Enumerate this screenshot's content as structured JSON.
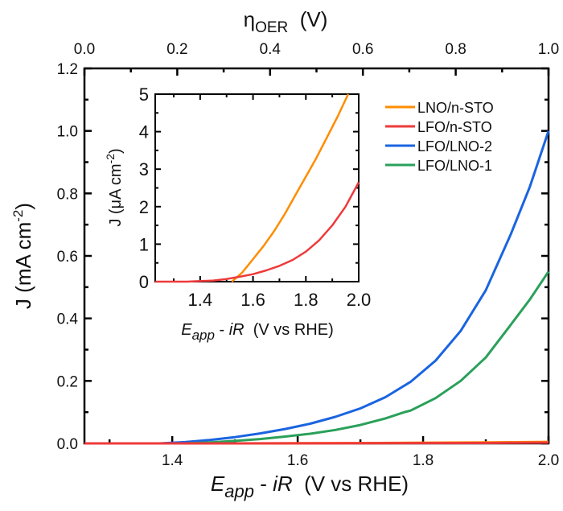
{
  "chart_data": [
    {
      "id": "main",
      "type": "line",
      "title": "",
      "xlabel": {
        "main": "E",
        "sub": "app",
        "rest": " - iR  (V vs RHE)"
      },
      "ylabel": {
        "main": "J (mA cm",
        "sup": "-2",
        "close": ")"
      },
      "top_xlabel": {
        "main": "η",
        "sub": "OER",
        "rest": "  (V)"
      },
      "xlim": [
        1.26,
        2.0
      ],
      "ylim": [
        0.0,
        1.2
      ],
      "top_xlim": [
        0.0,
        1.0
      ],
      "x_ticks": [
        "1.4",
        "1.6",
        "1.8",
        "2.0"
      ],
      "x_tick_values": [
        1.4,
        1.6,
        1.8,
        2.0
      ],
      "y_ticks": [
        "0.0",
        "0.2",
        "0.4",
        "0.6",
        "0.8",
        "1.0",
        "1.2"
      ],
      "y_tick_values": [
        0.0,
        0.2,
        0.4,
        0.6,
        0.8,
        1.0,
        1.2
      ],
      "top_x_ticks": [
        "0.0",
        "0.2",
        "0.4",
        "0.6",
        "0.8",
        "1.0"
      ],
      "top_x_tick_values": [
        0.0,
        0.2,
        0.4,
        0.6,
        0.8,
        1.0
      ],
      "grid": false,
      "legend_position": "top-right",
      "series": [
        {
          "name": "LNO/n-STO",
          "color": "#ff8c00",
          "x": [
            1.26,
            1.5,
            1.7,
            1.9,
            2.0
          ],
          "y": [
            0.0,
            0.0,
            0.001,
            0.003,
            0.005
          ]
        },
        {
          "name": "LFO/n-STO",
          "color": "#ee3a3a",
          "x": [
            1.26,
            1.5,
            1.7,
            1.9,
            2.0
          ],
          "y": [
            0.0,
            0.0,
            0.0005,
            0.0012,
            0.0027
          ]
        },
        {
          "name": "LFO/LNO-2",
          "color": "#1a64e0",
          "x": [
            1.26,
            1.38,
            1.42,
            1.46,
            1.5,
            1.54,
            1.58,
            1.62,
            1.66,
            1.7,
            1.74,
            1.78,
            1.82,
            1.86,
            1.9,
            1.94,
            1.97,
            2.0
          ],
          "y": [
            0.0,
            0.0,
            0.004,
            0.011,
            0.02,
            0.032,
            0.046,
            0.063,
            0.085,
            0.112,
            0.148,
            0.197,
            0.265,
            0.36,
            0.49,
            0.67,
            0.82,
            1.0
          ]
        },
        {
          "name": "LFO/LNO-1",
          "color": "#2aa05a",
          "x": [
            1.26,
            1.42,
            1.46,
            1.5,
            1.54,
            1.58,
            1.62,
            1.66,
            1.7,
            1.74,
            1.77,
            1.78,
            1.82,
            1.86,
            1.9,
            1.94,
            1.97,
            2.0
          ],
          "y": [
            0.0,
            0.0,
            0.003,
            0.008,
            0.014,
            0.022,
            0.031,
            0.043,
            0.059,
            0.08,
            0.1,
            0.105,
            0.145,
            0.2,
            0.275,
            0.38,
            0.46,
            0.55
          ]
        }
      ]
    },
    {
      "id": "inset",
      "type": "line",
      "title": "",
      "xlabel": {
        "main": "E",
        "sub": "app",
        "rest": " - iR  (V vs RHE)"
      },
      "ylabel": {
        "main": "J (μA cm",
        "sup": "-2",
        "close": ")"
      },
      "xlim": [
        1.23,
        2.0
      ],
      "ylim": [
        0,
        5
      ],
      "x_ticks": [
        "1.4",
        "1.6",
        "1.8",
        "2.0"
      ],
      "x_tick_values": [
        1.4,
        1.6,
        1.8,
        2.0
      ],
      "y_ticks": [
        "0",
        "1",
        "2",
        "3",
        "4",
        "5"
      ],
      "y_tick_values": [
        0,
        1,
        2,
        3,
        4,
        5
      ],
      "grid": false,
      "series": [
        {
          "name": "LNO/n-STO",
          "color": "#ff8c00",
          "x": [
            1.52,
            1.56,
            1.6,
            1.64,
            1.68,
            1.72,
            1.76,
            1.8,
            1.84,
            1.88,
            1.92,
            1.96
          ],
          "y": [
            0.0,
            0.25,
            0.6,
            0.95,
            1.35,
            1.8,
            2.3,
            2.8,
            3.3,
            3.85,
            4.4,
            5.0
          ]
        },
        {
          "name": "LFO/n-STO",
          "color": "#ee3a3a",
          "x": [
            1.23,
            1.35,
            1.45,
            1.5,
            1.55,
            1.6,
            1.65,
            1.7,
            1.75,
            1.8,
            1.85,
            1.9,
            1.95,
            2.0
          ],
          "y": [
            0.0,
            0.0,
            0.03,
            0.07,
            0.13,
            0.2,
            0.3,
            0.42,
            0.58,
            0.8,
            1.1,
            1.5,
            2.0,
            2.65
          ]
        }
      ]
    }
  ],
  "legend": {
    "entries": [
      {
        "label": "LNO/n-STO",
        "color": "#ff8c00"
      },
      {
        "label": "LFO/n-STO",
        "color": "#ee3a3a"
      },
      {
        "label": "LFO/LNO-2",
        "color": "#1a64e0"
      },
      {
        "label": "LFO/LNO-1",
        "color": "#2aa05a"
      }
    ]
  }
}
